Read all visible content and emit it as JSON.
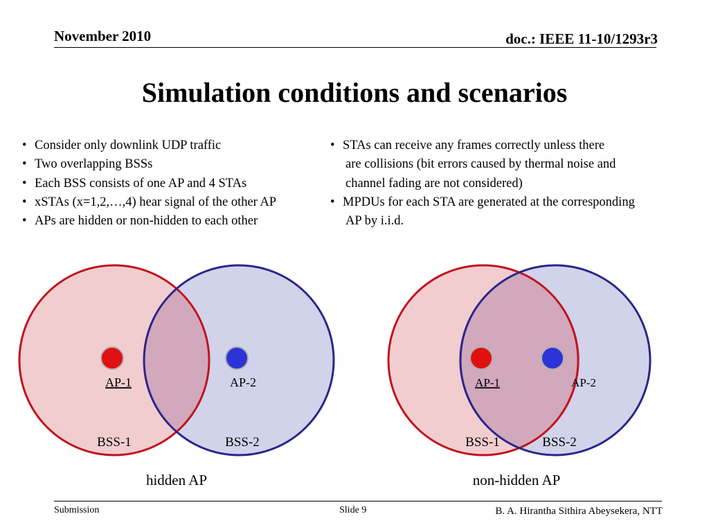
{
  "header": {
    "date": "November 2010",
    "doc": "doc.: IEEE 11-10/1293r3"
  },
  "title": "Simulation conditions and scenarios",
  "left_bullets": [
    "Consider only downlink UDP traffic",
    "Two overlapping BSSs",
    "Each BSS consists of one AP and 4 STAs",
    "xSTAs (x=1,2,…,4) hear signal of the other AP",
    "APs are hidden or non-hidden to each other"
  ],
  "right_bullets": {
    "b1_line1": "STAs can receive any frames correctly unless there",
    "b1_line2": "are collisions (bit errors caused by thermal noise and",
    "b1_line3": "channel fading are not considered)",
    "b2_line1": "MPDUs for each STA are generated at the corresponding",
    "b2_line2": "AP by i.i.d."
  },
  "diagrams": {
    "hidden": {
      "ap1": "AP-1",
      "ap2": "AP-2",
      "bss1": "BSS-1",
      "bss2": "BSS-2",
      "caption": "hidden AP"
    },
    "nonhidden": {
      "ap1": "AP-1",
      "ap2": "AP-2",
      "bss1": "BSS-1",
      "bss2": "BSS-2",
      "caption": "non-hidden AP"
    }
  },
  "colors": {
    "red_fill": "#f2cdd0",
    "red_stroke": "#c0141c",
    "blue_fill": "#d1d3ea",
    "blue_stroke": "#2a2688",
    "ap_red": "#e01010",
    "ap_blue": "#2c34d8"
  },
  "footer": {
    "submission": "Submission",
    "slide": "Slide 9",
    "author": "B. A. Hirantha Sithira Abeysekera, NTT"
  }
}
